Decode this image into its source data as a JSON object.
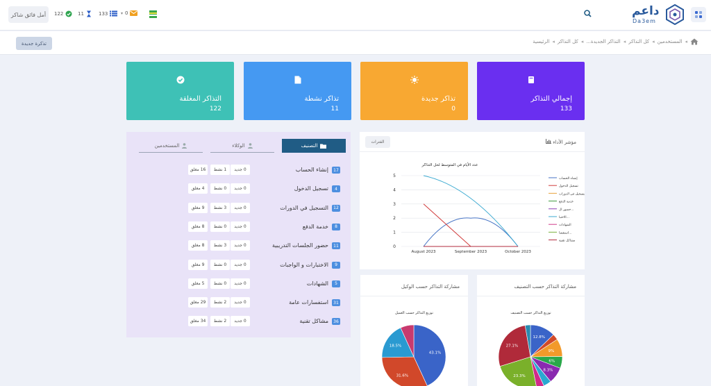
{
  "header": {
    "user_name": "أمل فائق شاكر",
    "counters": [
      {
        "name": "check",
        "value": "122",
        "color": "#2ea44f"
      },
      {
        "name": "hourglass",
        "value": "11",
        "color": "#2a5cc7"
      },
      {
        "name": "list",
        "value": "133",
        "color": "#2a5cc7"
      },
      {
        "name": "mail",
        "value": "0",
        "color": "#f0a020"
      }
    ],
    "logo_ar": "داعم",
    "logo_en": "Da3em"
  },
  "subbar": {
    "new_ticket_label": "تذكرة جديدة",
    "breadcrumbs": [
      "المستخدمين",
      "كل التذاكر",
      "التذاكر الجديدة...",
      "كل التذاكر",
      "الرئيسية"
    ]
  },
  "kpis": [
    {
      "title": "إجمالي التذاكر",
      "value": "133",
      "color": "#6a2ff0",
      "icon": "book-icon"
    },
    {
      "title": "تذاكر جديدة",
      "value": "0",
      "color": "#f8a832",
      "icon": "sun-icon"
    },
    {
      "title": "تذاكر نشطة",
      "value": "11",
      "color": "#4599f2",
      "icon": "file-icon"
    },
    {
      "title": "التذاكر المغلقة",
      "value": "122",
      "color": "#3ec1b6",
      "icon": "check-circle-icon"
    }
  ],
  "category_panel": {
    "tabs": [
      "التصنيف",
      "الوكلاء",
      "المستخدمين"
    ],
    "rows": [
      {
        "badge": "17",
        "name": "إنشاء الحساب",
        "new": "0 جديد",
        "active": "1 نشط",
        "closed": "16 مغلق"
      },
      {
        "badge": "4",
        "name": "تسجيل الدخول",
        "new": "0 جديد",
        "active": "0 نشط",
        "closed": "4 مغلق"
      },
      {
        "badge": "12",
        "name": "التسجيل في الدورات",
        "new": "0 جديد",
        "active": "3 نشط",
        "closed": "9 مغلق"
      },
      {
        "badge": "8",
        "name": "خدمة الدفع",
        "new": "0 جديد",
        "active": "0 نشط",
        "closed": "8 مغلق"
      },
      {
        "badge": "11",
        "name": "حضور الجلسات التدريبية",
        "new": "0 جديد",
        "active": "3 نشط",
        "closed": "8 مغلق"
      },
      {
        "badge": "9",
        "name": "الاختبارات و الواجبات",
        "new": "0 جديد",
        "active": "0 نشط",
        "closed": "9 مغلق"
      },
      {
        "badge": "5",
        "name": "الشهادات",
        "new": "0 جديد",
        "active": "0 نشط",
        "closed": "5 مغلق"
      },
      {
        "badge": "31",
        "name": "استفسارات عامة",
        "new": "0 جديد",
        "active": "2 نشط",
        "closed": "29 مغلق"
      },
      {
        "badge": "36",
        "name": "مشاكل تقنية",
        "new": "0 جديد",
        "active": "2 نشط",
        "closed": "34 مغلق"
      }
    ]
  },
  "performance": {
    "title": "مؤشر الأداء",
    "button": "الفترات"
  },
  "chart_data": [
    {
      "type": "line",
      "title": "عدد الأيام في المتوسط لحل التذاكر",
      "x": [
        "August 2023",
        "September 2023",
        "October 2023"
      ],
      "ylim": [
        0,
        5
      ],
      "yticks": [
        0,
        1,
        2,
        3,
        4,
        5
      ],
      "grid": true,
      "legend": "right",
      "series": [
        {
          "name": "إنشاء الحساب",
          "color": "#4472c4",
          "values": [
            0,
            2,
            0
          ]
        },
        {
          "name": "تسجيل الدخول",
          "color": "#d13c3c",
          "values": [
            3,
            0,
            0
          ]
        },
        {
          "name": "التسجيل في الدورات",
          "color": "#e8a33c",
          "values": [
            0,
            0,
            0
          ]
        },
        {
          "name": "خدمة الدفع",
          "color": "#3c9a3c",
          "values": [
            0,
            0,
            0
          ]
        },
        {
          "name": "حضور ال...",
          "color": "#8a3cb0",
          "values": [
            0,
            0,
            0
          ]
        },
        {
          "name": "الاختبا...",
          "color": "#3caad1",
          "values": [
            5,
            4,
            0
          ]
        },
        {
          "name": "الشهادات",
          "color": "#d13c8a",
          "values": [
            0,
            0,
            0
          ]
        },
        {
          "name": "استفسا...",
          "color": "#7ab03c",
          "values": [
            0,
            0,
            0
          ]
        },
        {
          "name": "مشاكل تقنية",
          "color": "#b02a3c",
          "values": [
            0,
            0,
            0
          ]
        }
      ]
    },
    {
      "type": "pie",
      "title": "مشاركة التذاكر حسب الوكيل",
      "subtitle": "توزيع التذاكر حسب العميل",
      "slices": [
        {
          "value": 43.1,
          "label": "43.1%",
          "color": "#3a64c8"
        },
        {
          "value": 31.6,
          "label": "31.6%",
          "color": "#d1482a"
        },
        {
          "value": 18.5,
          "label": "18.5%",
          "color": "#2a9ad1"
        },
        {
          "value": 6.8,
          "label": "",
          "color": "#c83a6e"
        }
      ]
    },
    {
      "type": "pie",
      "title": "مشاركة التذاكر حسب التصنيف",
      "subtitle": "توزيع التذاكر حسب التصنيف",
      "slices": [
        {
          "value": 12.8,
          "label": "12.8%",
          "color": "#3a64c8"
        },
        {
          "value": 3,
          "label": "",
          "color": "#d14a2a"
        },
        {
          "value": 9,
          "label": "9%",
          "color": "#f29a2a"
        },
        {
          "value": 6,
          "label": "6%",
          "color": "#2aa84a"
        },
        {
          "value": 8.3,
          "label": "8.3%",
          "color": "#8a2ab0"
        },
        {
          "value": 4,
          "label": "",
          "color": "#2aa8d1"
        },
        {
          "value": 3.8,
          "label": "",
          "color": "#d12a8a"
        },
        {
          "value": 23.3,
          "label": "23.3%",
          "color": "#7ab02a"
        },
        {
          "value": 27.1,
          "label": "27.1%",
          "color": "#b02a3a"
        },
        {
          "value": 2.7,
          "label": "",
          "color": "#2a8ab0"
        }
      ]
    }
  ]
}
